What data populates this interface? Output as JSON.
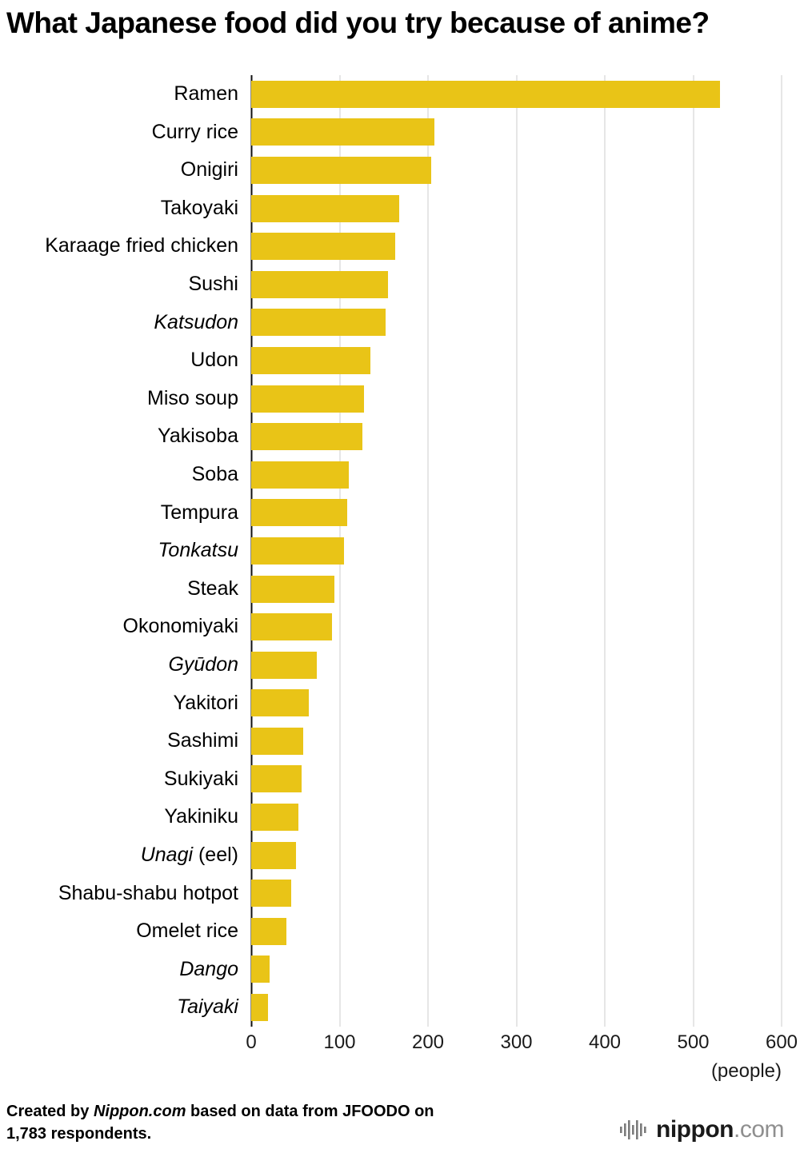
{
  "title": "What Japanese food did you try because of anime?",
  "chart_data": {
    "type": "bar",
    "orientation": "horizontal",
    "bar_color": "#e9c417",
    "grid_color": "#cccccc",
    "axis_color": "#111111",
    "xlim": [
      0,
      600
    ],
    "xticks": [
      0,
      100,
      200,
      300,
      400,
      500,
      600
    ],
    "x_unit": "(people)",
    "bars": [
      {
        "value": 530,
        "label_segments": [
          {
            "text": "Ramen",
            "italic": false
          }
        ]
      },
      {
        "value": 207,
        "label_segments": [
          {
            "text": "Curry rice",
            "italic": false
          }
        ]
      },
      {
        "value": 204,
        "label_segments": [
          {
            "text": "Onigiri",
            "italic": false
          }
        ]
      },
      {
        "value": 167,
        "label_segments": [
          {
            "text": "Takoyaki",
            "italic": false
          }
        ]
      },
      {
        "value": 163,
        "label_segments": [
          {
            "text": "Karaage fried chicken",
            "italic": false
          }
        ]
      },
      {
        "value": 155,
        "label_segments": [
          {
            "text": "Sushi",
            "italic": false
          }
        ]
      },
      {
        "value": 152,
        "label_segments": [
          {
            "text": "Katsudon",
            "italic": true
          }
        ]
      },
      {
        "value": 135,
        "label_segments": [
          {
            "text": "Udon",
            "italic": false
          }
        ]
      },
      {
        "value": 128,
        "label_segments": [
          {
            "text": "Miso soup",
            "italic": false
          }
        ]
      },
      {
        "value": 126,
        "label_segments": [
          {
            "text": "Yakisoba",
            "italic": false
          }
        ]
      },
      {
        "value": 110,
        "label_segments": [
          {
            "text": "Soba",
            "italic": false
          }
        ]
      },
      {
        "value": 109,
        "label_segments": [
          {
            "text": "Tempura",
            "italic": false
          }
        ]
      },
      {
        "value": 105,
        "label_segments": [
          {
            "text": "Tonkatsu",
            "italic": true
          }
        ]
      },
      {
        "value": 94,
        "label_segments": [
          {
            "text": "Steak",
            "italic": false
          }
        ]
      },
      {
        "value": 91,
        "label_segments": [
          {
            "text": "Okonomiyaki",
            "italic": false
          }
        ]
      },
      {
        "value": 74,
        "label_segments": [
          {
            "text": "Gyūdon",
            "italic": true
          }
        ]
      },
      {
        "value": 65,
        "label_segments": [
          {
            "text": "Yakitori",
            "italic": false
          }
        ]
      },
      {
        "value": 59,
        "label_segments": [
          {
            "text": "Sashimi",
            "italic": false
          }
        ]
      },
      {
        "value": 57,
        "label_segments": [
          {
            "text": "Sukiyaki",
            "italic": false
          }
        ]
      },
      {
        "value": 53,
        "label_segments": [
          {
            "text": "Yakiniku",
            "italic": false
          }
        ]
      },
      {
        "value": 51,
        "label_segments": [
          {
            "text": "Unagi",
            "italic": true
          },
          {
            "text": " (eel)",
            "italic": false
          }
        ]
      },
      {
        "value": 45,
        "label_segments": [
          {
            "text": "Shabu-shabu hotpot",
            "italic": false
          }
        ]
      },
      {
        "value": 40,
        "label_segments": [
          {
            "text": "Omelet rice",
            "italic": false
          }
        ]
      },
      {
        "value": 21,
        "label_segments": [
          {
            "text": "Dango",
            "italic": true
          }
        ]
      },
      {
        "value": 19,
        "label_segments": [
          {
            "text": "Taiyaki",
            "italic": true
          }
        ]
      }
    ]
  },
  "footer": {
    "credit_lines": [
      [
        {
          "text": "Created by ",
          "italic": false
        },
        {
          "text": "Nippon.com",
          "italic": true
        },
        {
          "text": " based on data from JFOODO on",
          "italic": false
        }
      ],
      [
        {
          "text": "1,783 respondents.",
          "italic": false
        }
      ]
    ],
    "logo": {
      "icon": "soundwave-bars-icon",
      "name": "nippon",
      "tld": ".com"
    }
  }
}
